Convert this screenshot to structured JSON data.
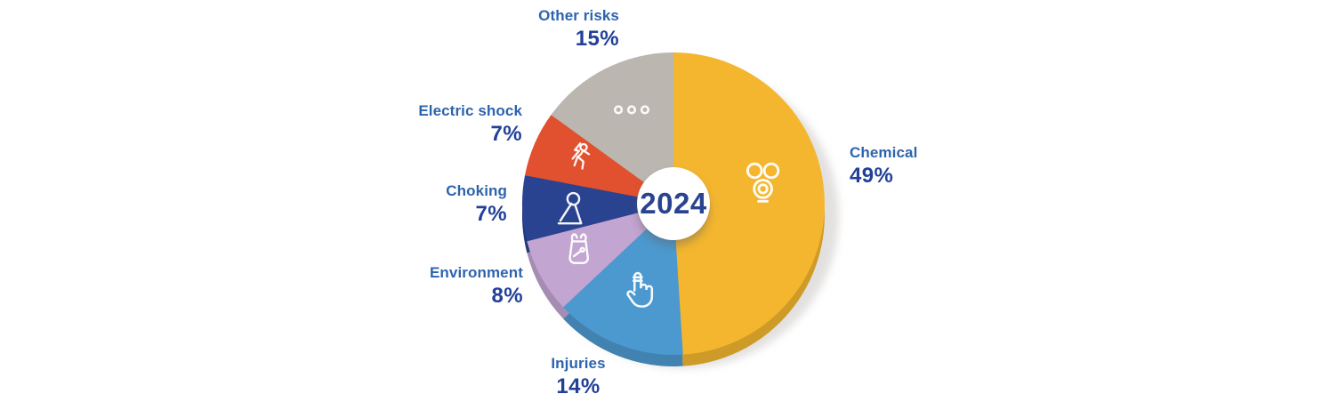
{
  "page": {
    "background": "#ffffff"
  },
  "chart_data": {
    "type": "pie",
    "center_label": "2024",
    "unit": "%",
    "direction": "clockwise",
    "start_angle_deg": 0,
    "total": 100,
    "slices": [
      {
        "label": "Chemical",
        "value": 49,
        "value_label": "49%",
        "color": "#F4B62F",
        "icon": "gas-mask-icon"
      },
      {
        "label": "Injuries",
        "value": 14,
        "value_label": "14%",
        "color": "#4C99CF",
        "icon": "bandaged-finger-icon"
      },
      {
        "label": "Environment",
        "value": 8,
        "value_label": "8%",
        "color": "#C2A5D1",
        "icon": "plastic-bag-icon"
      },
      {
        "label": "Choking",
        "value": 7,
        "value_label": "7%",
        "color": "#2A4390",
        "icon": "choking-person-icon"
      },
      {
        "label": "Electric shock",
        "value": 7,
        "value_label": "7%",
        "color": "#E1512F",
        "icon": "electric-shock-icon"
      },
      {
        "label": "Other risks",
        "value": 15,
        "value_label": "15%",
        "color": "#BCB6B0",
        "icon": "three-dots-icon"
      }
    ],
    "style": {
      "category_label_color": "#2D64AE",
      "value_label_color": "#21409A",
      "center_label_color": "#2A4390",
      "icon_color": "#ffffff",
      "shadow_color": "#c6c3c0"
    }
  }
}
